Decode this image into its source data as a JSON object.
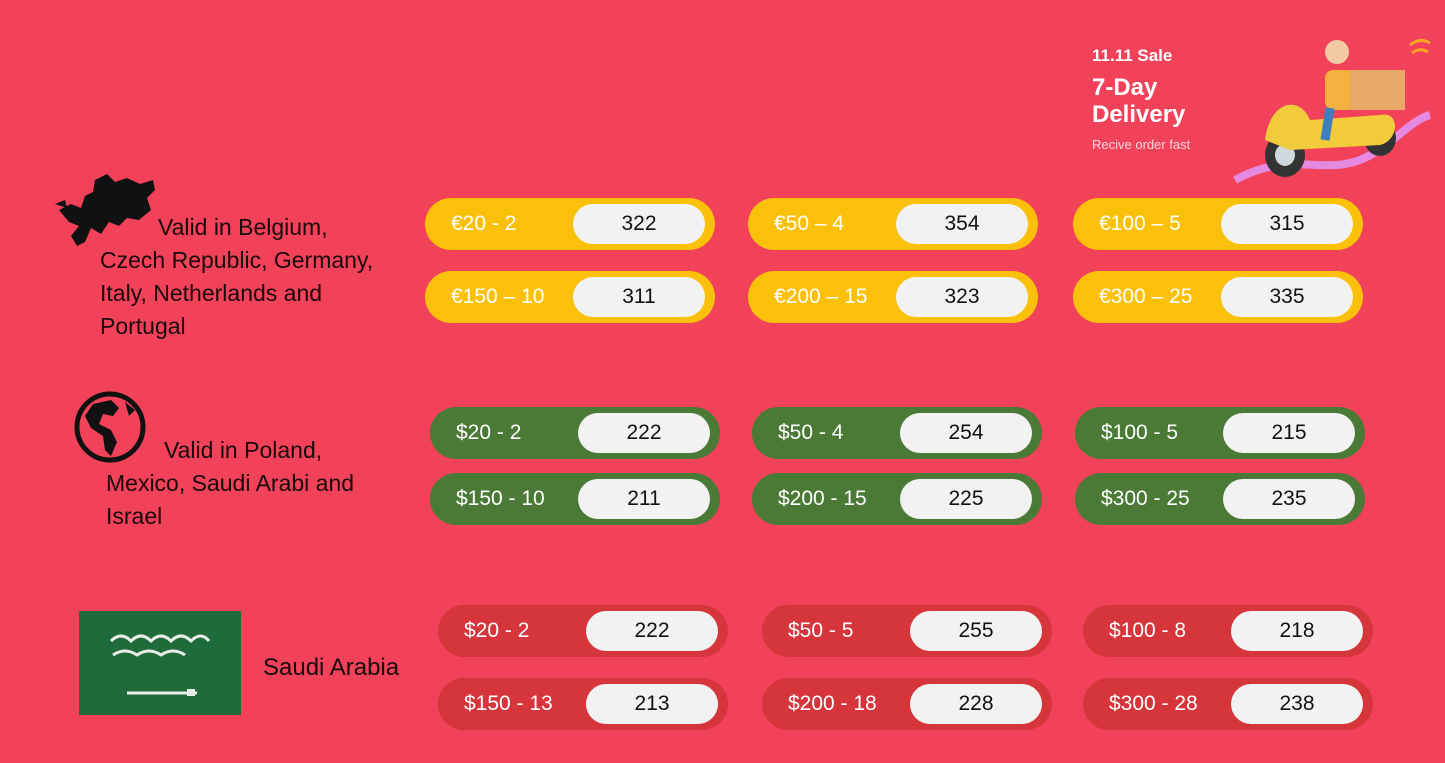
{
  "banner": {
    "sale": "11.11 Sale",
    "line1": "7-Day",
    "line2": "Delivery",
    "subtitle": "Recive order fast"
  },
  "colors": {
    "background": "#f1425a",
    "europe": "#fbc10a",
    "global": "#4b7a36",
    "saudi": "#d6353b"
  },
  "sections": [
    {
      "icon": "europe-map-icon",
      "text_lines": [
        "Valid in Belgium,",
        "Czech Republic, Germany,",
        "Italy, Netherlands and",
        "Portugal"
      ],
      "coupons": [
        {
          "label": "€20 - 2",
          "code": "322"
        },
        {
          "label": "€50 – 4",
          "code": "354"
        },
        {
          "label": "€100 – 5",
          "code": "315"
        },
        {
          "label": "€150 – 10",
          "code": "311"
        },
        {
          "label": "€200 – 15",
          "code": "323"
        },
        {
          "label": "€300 – 25",
          "code": "335"
        }
      ]
    },
    {
      "icon": "globe-americas-icon",
      "text_lines": [
        "Valid in Poland,",
        "Mexico, Saudi Arabi and",
        "Israel"
      ],
      "coupons": [
        {
          "label": "$20 - 2",
          "code": "222"
        },
        {
          "label": "$50 - 4",
          "code": "254"
        },
        {
          "label": "$100 - 5",
          "code": "215"
        },
        {
          "label": "$150 - 10",
          "code": "211"
        },
        {
          "label": "$200 - 15",
          "code": "225"
        },
        {
          "label": "$300 - 25",
          "code": "235"
        }
      ]
    },
    {
      "icon": "saudi-flag-icon",
      "text_lines": [
        "Saudi Arabia"
      ],
      "coupons": [
        {
          "label": "$20 - 2",
          "code": "222"
        },
        {
          "label": "$50 - 5",
          "code": "255"
        },
        {
          "label": "$100 - 8",
          "code": "218"
        },
        {
          "label": "$150 - 13",
          "code": "213"
        },
        {
          "label": "$200 - 18",
          "code": "228"
        },
        {
          "label": "$300 - 28",
          "code": "238"
        }
      ]
    }
  ]
}
